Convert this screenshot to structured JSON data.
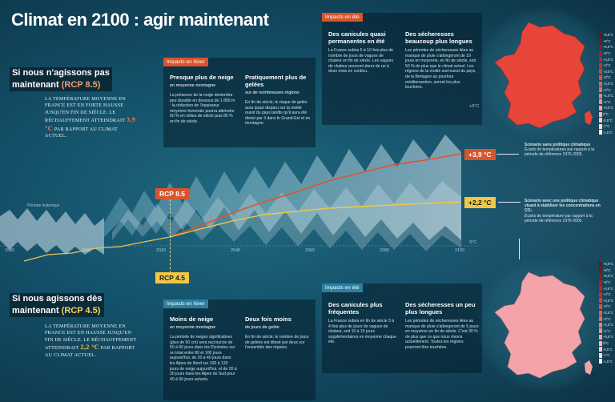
{
  "title": "Climat en 2100 : agir maintenant",
  "scenario_high": {
    "title_line1": "Si nous n'agissons pas",
    "title_line2_prefix": "maintenant ",
    "title_line2_hl": "(RCP 8.5)",
    "text_before": "La température moyenne en France est en forte hausse jusqu'en fin de siècle. Le réchauffement atteindrait",
    "value": "3,9 °C",
    "text_after": "par rapport au climat actuel."
  },
  "scenario_low": {
    "title_line1": "Si nous agissons dès",
    "title_line2_prefix": "maintenant ",
    "title_line2_hl": "(RCP 4.5)",
    "text_before": "La température moyenne en France est en hausse jusqu'en fin de siècle. Le réchauffement atteindrait",
    "value": "2,2 °C",
    "text_after": "par rapport au climat actuel."
  },
  "impacts_winter_high": {
    "tag": "Impacts en hiver",
    "col1_head": "Presque plus de neige",
    "col1_sub": "en moyenne montagne",
    "col1_body": "La présence de la neige deviendra peu durable en dessous de 1 800 m : la réduction de l'épaisseur moyenne hivernale pourra atteindre 50 % en milieu de siècle puis 80 % en fin de siècle.",
    "col2_head": "Pratiquement plus de gelées",
    "col2_sub": "sur de nombreuses régions",
    "col2_body": "En fin de siècle, le risque de gelée aura quasi disparu sur la moitié ouest du pays tandis qu'il aura été divisé par 3 dans le Grand-Est et en montagne."
  },
  "impacts_summer_high": {
    "tag": "Impacts en été",
    "col1_head": "Des canicules quasi permanentes en été",
    "col1_body": "La France subira 5 à 10 fois plus de nombre de jours de vagues de chaleur en fin de siècle. Les vagues de chaleur pourront durer de un à deux mois en continu.",
    "col2_head": "Des sécheresses beaucoup plus longues",
    "col2_body": "Les périodes de sécheresses liées au manque de pluie s'allongeront de 10 jours en moyenne, en fin de siècle, soit 50 % de plus que le climat actuel. Les régions de la moitié sud-ouest du pays, de la Bretagne au pourtour méditerranéen, seront les plus touchées."
  },
  "impacts_winter_low": {
    "tag": "Impacts en hiver",
    "col1_head": "Moins de neige",
    "col1_sub": "en moyenne montagne",
    "col1_body": "La période de neiges significatives (plus de 50 cm) sera raccourcie de 50 à 60 jours dans les Pyrénées sur un total entre 80 et 100 jours aujourd'hui, de 20 à 40 jours dans les Alpes du Nord sur 100 à 120 jours de neige aujourd'hui, et de 20 à 30 jours dans les Alpes du Sud pour 40 à 50 jours actuels.",
    "col2_head": "Deux fois moins",
    "col2_sub": "de jours de gelée",
    "col2_body": "En fin de siècle, le nombre de jours de gelées est divisé par deux sur l'ensemble des régions."
  },
  "impacts_summer_low": {
    "tag": "Impacts en été",
    "col1_head": "Des canicules plus fréquentes",
    "col1_body": "La France subira en fin de siècle 3 à 4 fois plus de jours de vagues de chaleur, soit 10 à 15 jours supplémentaires en moyenne chaque été.",
    "col2_head": "Des sécheresses un peu plus longues",
    "col2_body": "Les périodes de sécheresses liées au manque de pluie s'allongeront de 5 jours en moyenne en fin de siècle. C'est 30 % de plus que ce que nous vivons actuellement. Toutes les régions pourront être touchées."
  },
  "chart": {
    "label_rcp85": "RCP 8.5",
    "label_rcp45": "RCP 4.5",
    "value_85": "+3,9 °C",
    "value_45": "+2,2 °C",
    "periode": "Période historique",
    "ticks": [
      "1980",
      "2000",
      "2020",
      "2040",
      "2060",
      "2080",
      "2100"
    ],
    "zero": "0°C",
    "six": "+6°C"
  },
  "notes": {
    "high_title": "Scénario sans politique climatique",
    "high_body": "Écarts de températures par rapport à la période de référence 1976-2005.",
    "low_title": "Scénario avec une politique climatique visant à stabiliser les concentrations en CO₂",
    "low_body": "Écarts de température par rapport à la période de référence 1976-2005."
  },
  "legend": [
    "+6,5°C",
    "+6°C",
    "+5,5°C",
    "+5°C",
    "+4,5°C",
    "+4°C",
    "+3,5°C",
    "+3°C",
    "+2,5°C",
    "+2°C",
    "+1,5°C",
    "+1°C",
    "+0,5°C",
    "0°C",
    "-0,5°C",
    "-1°C",
    "-1,5°C"
  ],
  "colors": {
    "rcp85": "#d9542b",
    "rcp45": "#f2c744",
    "map_high": "#e8453a",
    "map_low": "#f3a3a9"
  }
}
